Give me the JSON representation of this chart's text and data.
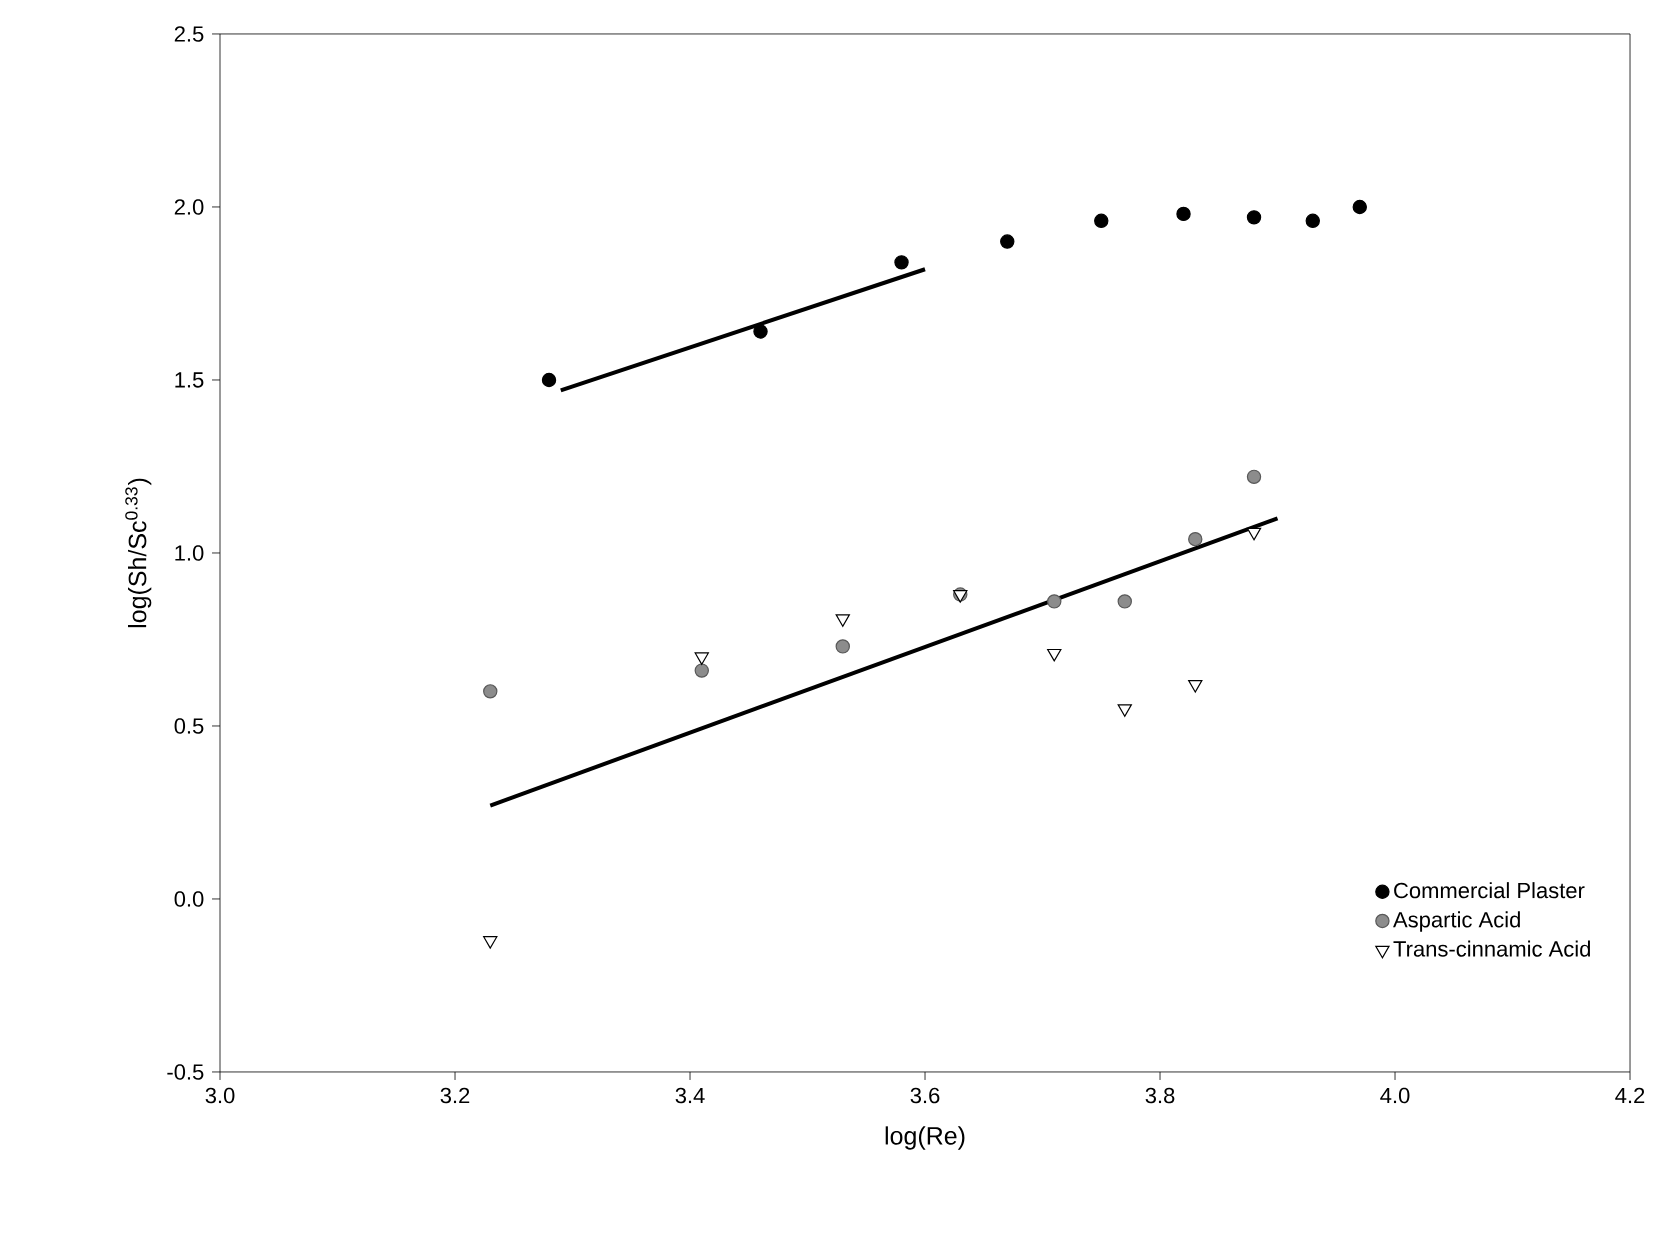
{
  "chart_data": {
    "type": "scatter",
    "xlabel": "log(Re)",
    "ylabel": "log(Sh/Sc$^{0.33}$)",
    "xlim": [
      3.0,
      4.2
    ],
    "ylim": [
      -0.5,
      2.5
    ],
    "xticks": [
      {
        "value": 3.0,
        "label": "3.0"
      },
      {
        "value": 3.2,
        "label": "3.2"
      },
      {
        "value": 3.4,
        "label": "3.4"
      },
      {
        "value": 3.6,
        "label": "3.6"
      },
      {
        "value": 3.8,
        "label": "3.8"
      },
      {
        "value": 4.0,
        "label": "4.0"
      },
      {
        "value": 4.2,
        "label": "4.2"
      }
    ],
    "yticks": [
      {
        "value": -0.5,
        "label": "-0.5"
      },
      {
        "value": 0.0,
        "label": "0.0"
      },
      {
        "value": 0.5,
        "label": "0.5"
      },
      {
        "value": 1.0,
        "label": "1.0"
      },
      {
        "value": 1.5,
        "label": "1.5"
      },
      {
        "value": 2.0,
        "label": "2.0"
      },
      {
        "value": 2.5,
        "label": "2.5"
      }
    ],
    "grid": false,
    "legend": "bottom right",
    "series": [
      {
        "name": "Commercial Plaster",
        "marker": "circle",
        "color": "#000000",
        "x": [
          3.28,
          3.46,
          3.58,
          3.67,
          3.75,
          3.82,
          3.88,
          3.93,
          3.97
        ],
        "values": [
          1.5,
          1.64,
          1.84,
          1.9,
          1.96,
          1.98,
          1.97,
          1.96,
          2.0
        ]
      },
      {
        "name": "Aspartic Acid",
        "marker": "circle",
        "color": "#8c8c8c",
        "x": [
          3.23,
          3.41,
          3.53,
          3.63,
          3.71,
          3.77,
          3.83,
          3.88
        ],
        "values": [
          0.6,
          0.66,
          0.73,
          0.88,
          0.86,
          0.86,
          1.04,
          1.22
        ]
      },
      {
        "name": "Trans-cinnamic Acid",
        "marker": "triangle",
        "color": "#ffffff",
        "x": [
          3.23,
          3.41,
          3.53,
          3.63,
          3.71,
          3.77,
          3.83,
          3.88
        ],
        "values": [
          -0.12,
          0.7,
          0.81,
          0.88,
          0.71,
          0.55,
          0.62,
          1.06
        ]
      },
      {
        "type": "line",
        "marker": "none",
        "color": "#000000",
        "x": [
          3.29,
          3.6
        ],
        "values": [
          1.47,
          1.82
        ]
      },
      {
        "type": "line",
        "marker": "none",
        "color": "#000000",
        "x": [
          3.23,
          3.9
        ],
        "values": [
          0.27,
          1.1
        ]
      }
    ]
  }
}
